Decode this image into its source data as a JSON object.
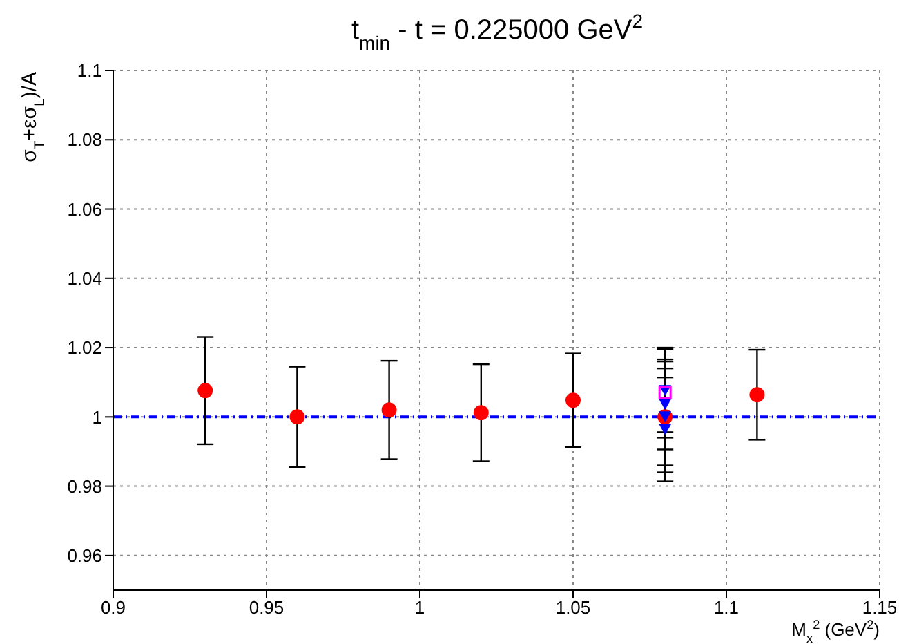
{
  "chart_data": {
    "type": "scatter",
    "title": "t$_{min}$ - t = 0.225000 GeV$^{2}$",
    "xlabel": "M$_{x}$$^{2}$ (GeV$^{2}$)",
    "ylabel": "σ$_{T}$+εσ$_{L}$)/A",
    "xlim": [
      0.9,
      1.15
    ],
    "xticks": [
      0.9,
      0.95,
      1,
      1.05,
      1.1,
      1.15
    ],
    "ylim": [
      0.95,
      1.1
    ],
    "yticks": [
      0.96,
      0.98,
      1,
      1.02,
      1.04,
      1.06,
      1.08,
      1.1
    ],
    "grid": true,
    "ref_lines": [
      {
        "axis": "y",
        "value": 1,
        "color": "#0000ff",
        "line_style": "dashed"
      }
    ],
    "series": [
      {
        "color": "#ff0000",
        "marker": "circle",
        "x": [
          0.93,
          0.96,
          0.99,
          1.02,
          1.05,
          1.08,
          1.11
        ],
        "values": [
          1.0076,
          1.0,
          1.002,
          1.0012,
          1.0048,
          1.0,
          1.0064
        ],
        "errors": [
          0.0155,
          0.0145,
          0.0142,
          0.014,
          0.0135,
          0.016,
          0.013
        ]
      },
      {
        "color": "#0000ff",
        "marker": "triangle",
        "x": [
          1.08,
          1.08,
          1.08,
          1.08
        ],
        "values": [
          1.0076,
          1.0036,
          1.0,
          0.9964
        ],
        "errors": [
          0.012,
          0.013,
          0.014,
          0.015
        ]
      },
      {
        "color": "#ff00ff",
        "marker": "square",
        "x": [
          1.08
        ],
        "values": [
          1.007
        ],
        "errors": [
          0.013
        ]
      }
    ]
  }
}
